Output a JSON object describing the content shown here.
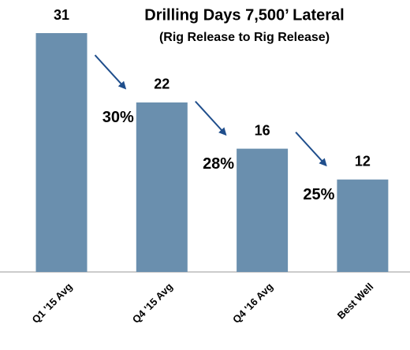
{
  "chart_data": {
    "type": "bar",
    "title": "Drilling Days 7,500’ Lateral",
    "subtitle": "(Rig Release to Rig Release)",
    "categories": [
      "Q1 '15 Avg",
      "Q4 '15 Avg",
      "Q4 '16 Avg",
      "Best Well"
    ],
    "values": [
      31,
      22,
      16,
      12
    ],
    "color": "#6a8fae",
    "annotations": [
      "30%",
      "28%",
      "25%"
    ],
    "annotation_color": "#1f5b9b"
  }
}
